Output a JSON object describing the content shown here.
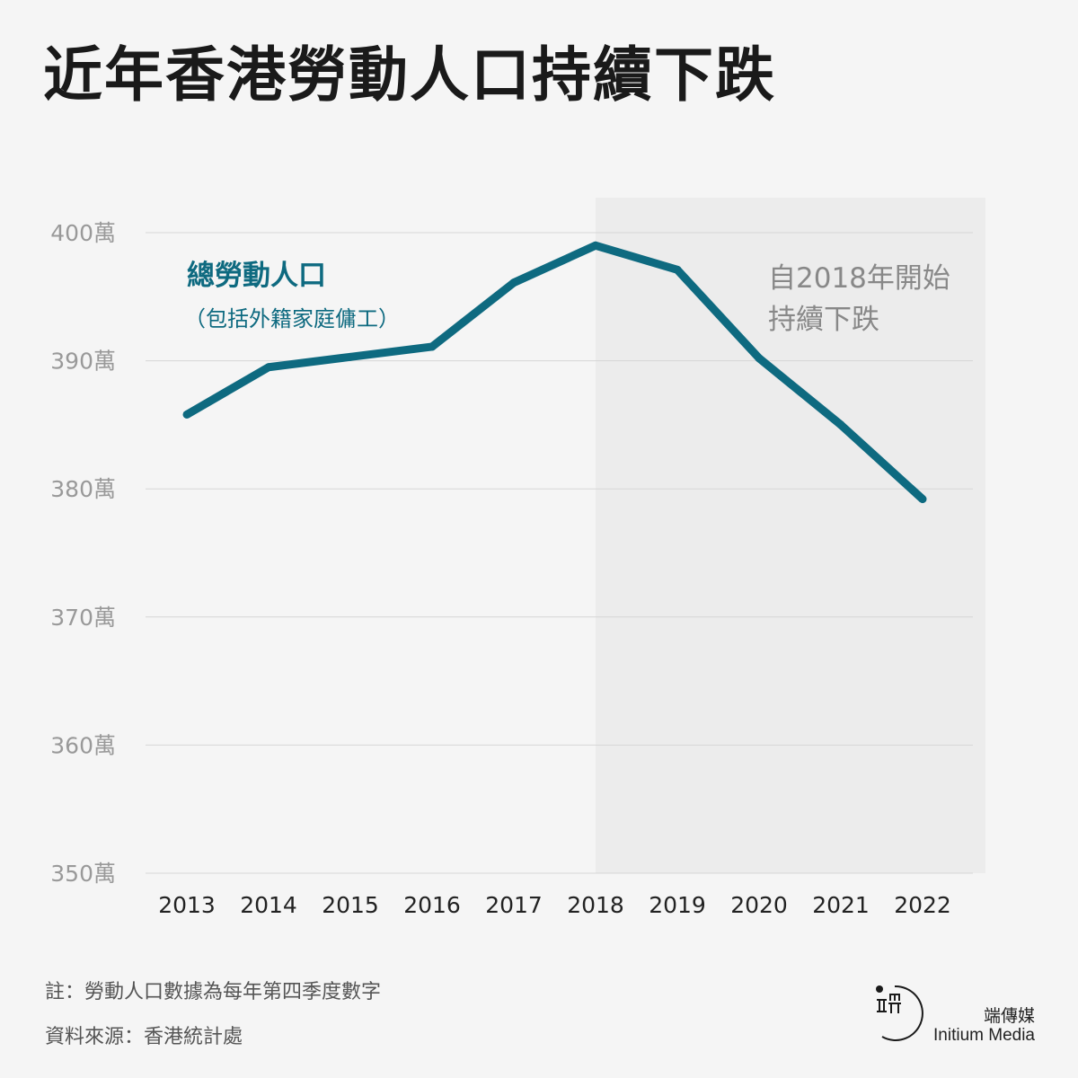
{
  "title": "近年香港勞動人口持續下跌",
  "chart_data": {
    "type": "line",
    "x": [
      "2013",
      "2014",
      "2015",
      "2016",
      "2017",
      "2018",
      "2019",
      "2020",
      "2021",
      "2022"
    ],
    "series": [
      {
        "name": "總勞動人口",
        "values": [
          385.8,
          389.5,
          390.3,
          391.1,
          396.1,
          399.0,
          397.1,
          390.2,
          385.0,
          379.2
        ]
      }
    ],
    "series_label": "總勞動人口",
    "series_sublabel": "（包括外籍家庭傭工）",
    "ylim": [
      350,
      400
    ],
    "y_ticks": [
      350,
      360,
      370,
      380,
      390,
      400
    ],
    "y_tick_labels": [
      "350萬",
      "360萬",
      "370萬",
      "380萬",
      "390萬",
      "400萬"
    ],
    "grid": true,
    "highlight_from": "2018",
    "annotation_line1": "自2018年開始",
    "annotation_line2": "持續下跌",
    "line_color": "#0e6a80"
  },
  "footnotes": {
    "note": "註：勞動人口數據為每年第四季度數字",
    "source": "資料來源：香港統計處"
  },
  "brand": {
    "zh": "端傳媒",
    "en": "Initium Media"
  }
}
